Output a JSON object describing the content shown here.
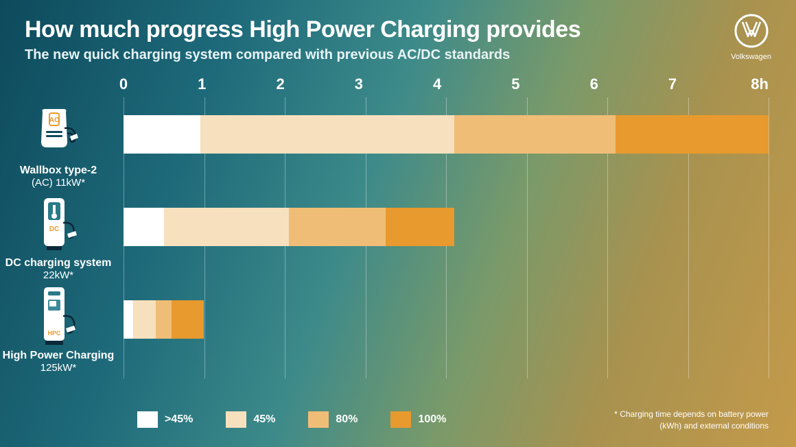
{
  "header": {
    "title": "How much progress High Power Charging provides",
    "subtitle": "The new quick charging system compared with previous AC/DC standards"
  },
  "brand": {
    "name": "Volkswagen"
  },
  "chart": {
    "type": "bar",
    "xlim": [
      0,
      8
    ],
    "xtick_step": 1,
    "x_labels": [
      "0",
      "1",
      "2",
      "3",
      "4",
      "5",
      "6",
      "7",
      "8h"
    ],
    "gridline_color": "rgba(255,255,255,0.35)",
    "segment_colors": {
      "gt45": "#ffffff",
      "p45": "#f7e0bd",
      "p80": "#f0bd77",
      "p100": "#e89a2e"
    },
    "rows": [
      {
        "id": "wallbox",
        "name": "Wallbox type-2",
        "sub": "(AC) 11kW*",
        "icon_label": "AC",
        "segments": [
          {
            "level": "gt45",
            "from": 0.0,
            "to": 0.95
          },
          {
            "level": "p45",
            "from": 0.95,
            "to": 4.1
          },
          {
            "level": "p80",
            "from": 4.1,
            "to": 6.1
          },
          {
            "level": "p100",
            "from": 6.1,
            "to": 8.0
          }
        ]
      },
      {
        "id": "dc",
        "name": "DC charging system",
        "sub": "22kW*",
        "icon_label": "DC",
        "segments": [
          {
            "level": "gt45",
            "from": 0.0,
            "to": 0.5
          },
          {
            "level": "p45",
            "from": 0.5,
            "to": 2.05
          },
          {
            "level": "p80",
            "from": 2.05,
            "to": 3.25
          },
          {
            "level": "p100",
            "from": 3.25,
            "to": 4.1
          }
        ]
      },
      {
        "id": "hpc",
        "name": "High Power Charging",
        "sub": "125kW*",
        "icon_label": "HPC",
        "segments": [
          {
            "level": "gt45",
            "from": 0.0,
            "to": 0.12
          },
          {
            "level": "p45",
            "from": 0.12,
            "to": 0.4
          },
          {
            "level": "p80",
            "from": 0.4,
            "to": 0.6
          },
          {
            "level": "p100",
            "from": 0.6,
            "to": 1.0
          }
        ]
      }
    ]
  },
  "legend": [
    {
      "level": "gt45",
      "label": ">45%"
    },
    {
      "level": "p45",
      "label": "45%"
    },
    {
      "level": "p80",
      "label": "80%"
    },
    {
      "level": "p100",
      "label": "100%"
    }
  ],
  "footnote": {
    "line1": "* Charging time depends on battery power",
    "line2": "(kWh) and external conditions"
  }
}
